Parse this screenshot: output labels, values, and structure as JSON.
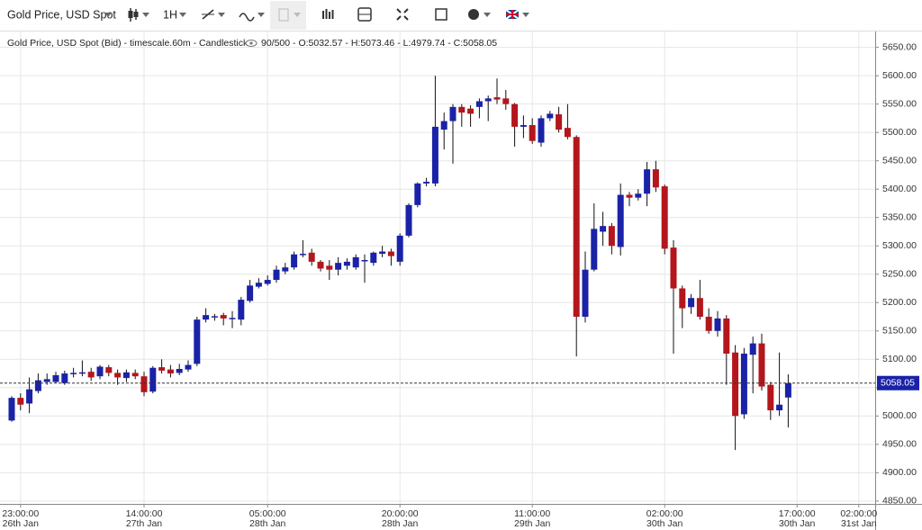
{
  "toolbar": {
    "instrument": "Gold Price, USD Spot",
    "interval": "1H"
  },
  "chart_data": {
    "type": "candlestick",
    "subtitle": "Gold Price, USD Spot (Bid) - timescale.60m - Candlestick",
    "status": "90/500 - O:5032.57 - H:5073.46 - L:4979.74 - C:5058.05",
    "categories": [
      null,
      "23:00:00",
      null,
      null,
      null,
      null,
      null,
      null,
      null,
      null,
      null,
      null,
      null,
      null,
      null,
      "14:00:00",
      null,
      null,
      null,
      null,
      null,
      null,
      null,
      null,
      null,
      null,
      null,
      null,
      null,
      "05:00:00",
      null,
      null,
      null,
      null,
      null,
      null,
      null,
      null,
      null,
      null,
      null,
      null,
      null,
      null,
      "20:00:00",
      null,
      null,
      null,
      null,
      null,
      null,
      null,
      null,
      null,
      null,
      null,
      null,
      null,
      null,
      "11:00:00",
      null,
      null,
      null,
      null,
      null,
      null,
      null,
      null,
      null,
      null,
      null,
      null,
      null,
      null,
      "02:00:00",
      null,
      null,
      null,
      null,
      null,
      null,
      null,
      null,
      null,
      null,
      null,
      null,
      null,
      null,
      "17:00:00",
      null,
      null,
      null,
      null,
      null,
      null,
      "02:00:00",
      null
    ],
    "category_dates": [
      null,
      "26th Jan",
      null,
      null,
      null,
      null,
      null,
      null,
      null,
      null,
      null,
      null,
      null,
      null,
      null,
      "27th Jan",
      null,
      null,
      null,
      null,
      null,
      null,
      null,
      null,
      null,
      null,
      null,
      null,
      null,
      "28th Jan",
      null,
      null,
      null,
      null,
      null,
      null,
      null,
      null,
      null,
      null,
      null,
      null,
      null,
      null,
      "28th Jan",
      null,
      null,
      null,
      null,
      null,
      null,
      null,
      null,
      null,
      null,
      null,
      null,
      null,
      null,
      "29th Jan",
      null,
      null,
      null,
      null,
      null,
      null,
      null,
      null,
      null,
      null,
      null,
      null,
      null,
      null,
      "30th Jan",
      null,
      null,
      null,
      null,
      null,
      null,
      null,
      null,
      null,
      null,
      null,
      null,
      null,
      null,
      "30th Jan",
      null,
      null,
      null,
      null,
      null,
      null,
      "31st Jan",
      null
    ],
    "series": {
      "open": [
        4992,
        5032,
        5022,
        5044,
        5060,
        5060,
        5058,
        5075,
        5076,
        5078,
        5070,
        5086,
        5076,
        5067,
        5076,
        5070,
        5043,
        5086,
        5082,
        5076,
        5082,
        5092,
        5170,
        5175,
        5178,
        5172,
        5170,
        5203,
        5228,
        5233,
        5240,
        5255,
        5262,
        5284,
        5288,
        5272,
        5265,
        5258,
        5265,
        5262,
        5274,
        5270,
        5286,
        5290,
        5272,
        5318,
        5372,
        5410,
        5410,
        5505,
        5520,
        5545,
        5542,
        5545,
        5555,
        5562,
        5560,
        5550,
        5510,
        5513,
        5482,
        5525,
        5532,
        5508,
        5492,
        5175,
        5258,
        5325,
        5335,
        5298,
        5390,
        5385,
        5392,
        5435,
        5405,
        5297,
        5225,
        5192,
        5208,
        5175,
        5150,
        5172,
        5112,
        5003,
        5108,
        5128,
        5055,
        5010,
        5032.57,
        null,
        null,
        null,
        null,
        null,
        null,
        null,
        null,
        null
      ],
      "high": [
        5035,
        5040,
        5068,
        5075,
        5075,
        5078,
        5080,
        5085,
        5098,
        5085,
        5090,
        5090,
        5082,
        5082,
        5082,
        5078,
        5088,
        5100,
        5090,
        5092,
        5098,
        5175,
        5190,
        5180,
        5182,
        5185,
        5210,
        5240,
        5243,
        5248,
        5265,
        5270,
        5290,
        5310,
        5295,
        5275,
        5275,
        5280,
        5278,
        5285,
        5285,
        5290,
        5300,
        5295,
        5322,
        5375,
        5412,
        5420,
        5600,
        5535,
        5550,
        5550,
        5548,
        5560,
        5565,
        5595,
        5575,
        5552,
        5530,
        5525,
        5530,
        5538,
        5545,
        5550,
        5495,
        5290,
        5375,
        5360,
        5340,
        5410,
        5395,
        5400,
        5448,
        5450,
        5408,
        5310,
        5230,
        5215,
        5240,
        5190,
        5185,
        5178,
        5125,
        5120,
        5140,
        5145,
        5060,
        5112,
        5073.46,
        null,
        null,
        null,
        null,
        null,
        null,
        null,
        null,
        null
      ],
      "low": [
        4990,
        5010,
        5005,
        5040,
        5055,
        5058,
        5055,
        5068,
        5070,
        5062,
        5065,
        5070,
        5055,
        5060,
        5065,
        5035,
        5040,
        5075,
        5068,
        5072,
        5078,
        5088,
        5165,
        5168,
        5160,
        5155,
        5160,
        5200,
        5225,
        5230,
        5235,
        5250,
        5258,
        5280,
        5265,
        5255,
        5240,
        5248,
        5258,
        5258,
        5235,
        5265,
        5280,
        5265,
        5265,
        5315,
        5368,
        5405,
        5405,
        5470,
        5445,
        5510,
        5510,
        5525,
        5520,
        5550,
        5540,
        5475,
        5490,
        5480,
        5475,
        5520,
        5500,
        5488,
        5105,
        5165,
        5255,
        5300,
        5285,
        5283,
        5370,
        5380,
        5370,
        5395,
        5285,
        5110,
        5155,
        5180,
        5170,
        5145,
        5140,
        5055,
        4940,
        4995,
        5040,
        5045,
        4993,
        5000,
        4979.74,
        null,
        null,
        null,
        null,
        null,
        null,
        null,
        null,
        null
      ],
      "close": [
        5032,
        5020,
        5047,
        5063,
        5065,
        5072,
        5075,
        5076,
        5077,
        5068,
        5087,
        5076,
        5068,
        5077,
        5070,
        5042,
        5085,
        5080,
        5075,
        5083,
        5090,
        5170,
        5178,
        5176,
        5172,
        5173,
        5205,
        5230,
        5235,
        5240,
        5258,
        5262,
        5285,
        5286,
        5272,
        5260,
        5258,
        5270,
        5272,
        5280,
        5275,
        5288,
        5290,
        5282,
        5318,
        5372,
        5410,
        5413,
        5510,
        5520,
        5545,
        5535,
        5533,
        5555,
        5560,
        5558,
        5550,
        5510,
        5513,
        5485,
        5525,
        5533,
        5505,
        5492,
        5175,
        5258,
        5330,
        5335,
        5300,
        5390,
        5385,
        5392,
        5435,
        5403,
        5295,
        5225,
        5190,
        5208,
        5175,
        5150,
        5172,
        5110,
        5000,
        5110,
        5128,
        5052,
        5010,
        5020,
        5058.05,
        null,
        null,
        null,
        null,
        null,
        null,
        null,
        null,
        null
      ]
    },
    "up_color": "#1a22a8",
    "down_color": "#b3161b",
    "last_price": 5058.05,
    "ylim": [
      4845,
      5678
    ],
    "yticks": [
      {
        "value": 4850,
        "label": "4850.00"
      },
      {
        "value": 4900,
        "label": "4900.00"
      },
      {
        "value": 4950,
        "label": "4950.00"
      },
      {
        "value": 5000,
        "label": "5000.00"
      },
      {
        "value": 5050,
        "label": "5050.00"
      },
      {
        "value": 5100,
        "label": "5100.00"
      },
      {
        "value": 5150,
        "label": "5150.00"
      },
      {
        "value": 5200,
        "label": "5200.00"
      },
      {
        "value": 5250,
        "label": "5250.00"
      },
      {
        "value": 5300,
        "label": "5300.00"
      },
      {
        "value": 5350,
        "label": "5350.00"
      },
      {
        "value": 5400,
        "label": "5400.00"
      },
      {
        "value": 5450,
        "label": "5450.00"
      },
      {
        "value": 5500,
        "label": "5500.00"
      },
      {
        "value": 5550,
        "label": "5550.00"
      },
      {
        "value": 5600,
        "label": "5600.00"
      },
      {
        "value": 5650,
        "label": "5650.00"
      }
    ],
    "grid": true
  }
}
